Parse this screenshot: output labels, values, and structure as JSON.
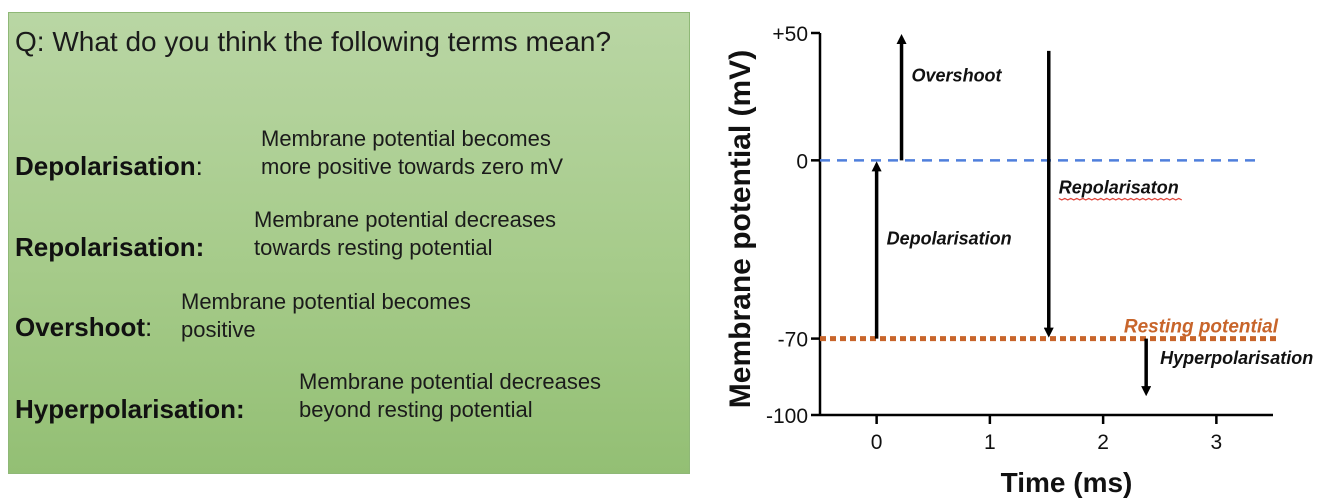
{
  "question": "Q: What do you think the following terms mean?",
  "terms": [
    {
      "term": "Depolarisation",
      "suffix": ":",
      "definition_lines": [
        "Membrane potential becomes",
        "more positive towards zero mV"
      ]
    },
    {
      "term": "Repolarisation:",
      "suffix": "",
      "definition_lines": [
        "Membrane potential decreases",
        "towards resting potential"
      ]
    },
    {
      "term": "Overshoot",
      "suffix": ":",
      "definition_lines": [
        "Membrane potential becomes",
        "positive"
      ]
    },
    {
      "term": "Hyperpolarisation:",
      "suffix": "",
      "definition_lines": [
        "Membrane potential decreases",
        "beyond resting potential"
      ]
    }
  ],
  "colors": {
    "zero_line": "#4f7fdc",
    "resting_line": "#c8652b",
    "arrow": "#000000",
    "panel": "#a6cb8a"
  },
  "chart_data": {
    "type": "line",
    "xlabel": "Time (ms)",
    "ylabel": "Membrane potential (mV)",
    "xlim": [
      -0.5,
      3.5
    ],
    "ylim": [
      -100,
      50
    ],
    "x_ticks": [
      0,
      1,
      2,
      3
    ],
    "x_tick_labels": [
      "0",
      "1",
      "2",
      "3"
    ],
    "y_ticks": [
      50,
      0,
      -70,
      -100
    ],
    "y_tick_labels": [
      "+50",
      "0",
      "-70",
      "-100"
    ],
    "reference_lines": [
      {
        "name": "zero",
        "y": 0,
        "style": "dashed",
        "label": ""
      },
      {
        "name": "resting",
        "y": -70,
        "style": "dotted",
        "label": "Resting potential"
      }
    ],
    "arrows": [
      {
        "name": "depolarisation",
        "label": "Depolarisation",
        "x": 0,
        "y_from": -70,
        "y_to": 0
      },
      {
        "name": "overshoot",
        "label": "Overshoot",
        "x": 0.22,
        "y_from": 0,
        "y_to": 50
      },
      {
        "name": "repolarisation",
        "label": "Repolarisaton",
        "x": 1.52,
        "y_from": 43,
        "y_to": -70
      },
      {
        "name": "hyperpolarisation",
        "label": "Hyperpolarisation",
        "x": 2.38,
        "y_from": -70,
        "y_to": -93
      }
    ]
  }
}
